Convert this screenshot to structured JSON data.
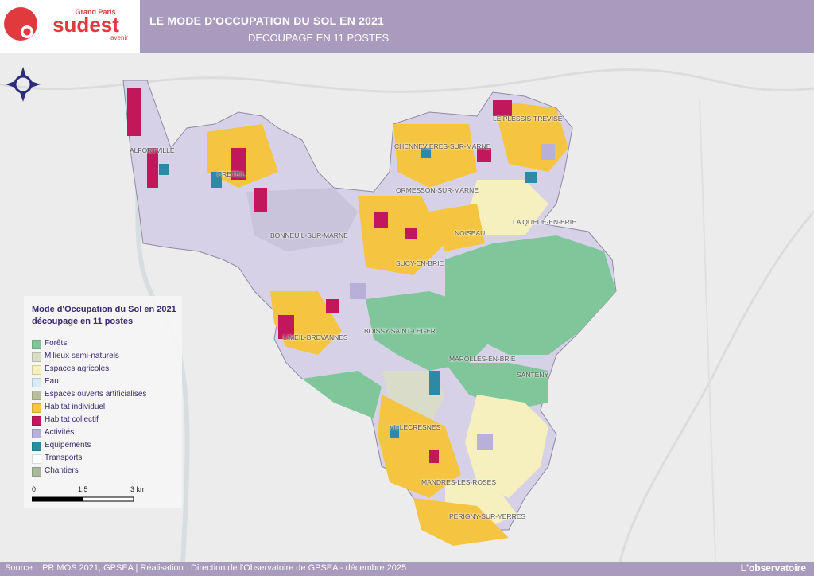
{
  "header": {
    "logo_top": "Grand Paris",
    "logo_main": "sudest",
    "logo_sub": "avenir",
    "title": "LE MODE D'OCCUPATION DU SOL EN 2021",
    "subtitle": "DECOUPAGE EN 11 POSTES"
  },
  "colors": {
    "header_band": "#a89bbd",
    "brand_red": "#e03a3e",
    "legend_text": "#3b2a6e"
  },
  "legend": {
    "title_line1": "Mode d'Occupation du Sol en 2021",
    "title_line2": "découpage en 11 postes",
    "items": [
      {
        "label": "Forêts",
        "color": "#7fc79a"
      },
      {
        "label": "Milieux semi-naturels",
        "color": "#d9dcc8"
      },
      {
        "label": "Espaces agricoles",
        "color": "#f5f0bd"
      },
      {
        "label": "Eau",
        "color": "#d7ecf7"
      },
      {
        "label": "Espaces ouverts artificialisés",
        "color": "#b9bf9e"
      },
      {
        "label": "Habitat individuel",
        "color": "#f5c542"
      },
      {
        "label": "Habitat collectif",
        "color": "#c2185b"
      },
      {
        "label": "Activités",
        "color": "#b8b0d8"
      },
      {
        "label": "Equipements",
        "color": "#2b8aa6"
      },
      {
        "label": "Transports",
        "color": "#ffffff"
      },
      {
        "label": "Chantiers",
        "color": "#a8b89a"
      }
    ]
  },
  "scale": {
    "label_0": "0",
    "label_mid": "1,5",
    "label_end": "3 km"
  },
  "places": [
    {
      "name": "ALFORTVILLE"
    },
    {
      "name": "CRETEIL"
    },
    {
      "name": "BONNEUIL-SUR-MARNE"
    },
    {
      "name": "CHENNEVIERES-SUR-MARNE"
    },
    {
      "name": "LE PLESSIS-TREVISE"
    },
    {
      "name": "ORMESSON-SUR-MARNE"
    },
    {
      "name": "LA QUEUE-EN-BRIE"
    },
    {
      "name": "NOISEAU"
    },
    {
      "name": "SUCY-EN-BRIE"
    },
    {
      "name": "BOISSY-SAINT-LEGER"
    },
    {
      "name": "LIMEIL-BREVANNES"
    },
    {
      "name": "MAROLLES-EN-BRIE"
    },
    {
      "name": "SANTENY"
    },
    {
      "name": "VILLECRESNES"
    },
    {
      "name": "MANDRES-LES-ROSES"
    },
    {
      "name": "PERIGNY-SUR-YERRES"
    }
  ],
  "footer": {
    "source": "Source : IPR MOS 2021, GPSEA | Réalisation : Direction de l'Observatoire de GPSEA - décembre 2025",
    "brand": "L'observatoire"
  }
}
